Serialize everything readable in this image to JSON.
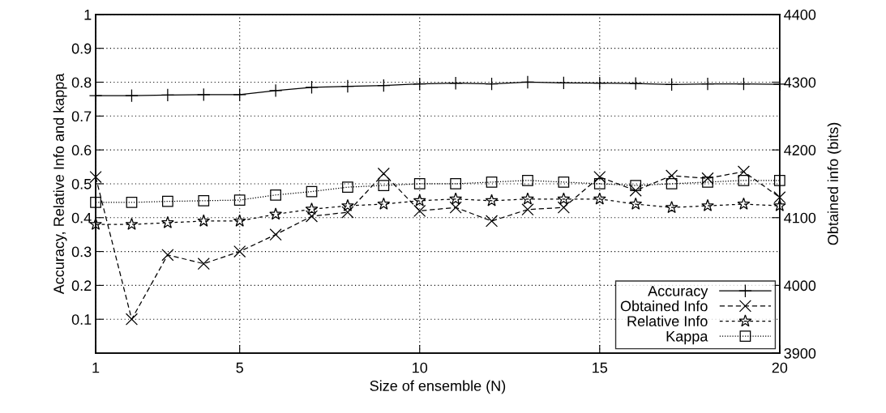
{
  "chart_data": {
    "type": "line",
    "xlabel": "Size of ensemble (N)",
    "ylabel": "Accuracy, Relative Info and kappa",
    "y2label": "Obtained info (bits)",
    "x": [
      1,
      2,
      3,
      4,
      5,
      6,
      7,
      8,
      9,
      10,
      11,
      12,
      13,
      14,
      15,
      16,
      17,
      18,
      19,
      20
    ],
    "xlim": [
      1,
      20
    ],
    "xticks": [
      1,
      5,
      10,
      15,
      20
    ],
    "ylim": [
      0,
      1
    ],
    "yticks": [
      0.1,
      0.2,
      0.3,
      0.4,
      0.5,
      0.6,
      0.7,
      0.8,
      0.9,
      1
    ],
    "y2lim": [
      3900,
      4400
    ],
    "y2ticks": [
      3900,
      4000,
      4100,
      4200,
      4300,
      4400
    ],
    "grid": true,
    "legend": "bottom right",
    "series": [
      {
        "name": "Accuracy",
        "color": "#000000",
        "marker": "cross",
        "line_style": "solid",
        "values": [
          0.76,
          0.76,
          0.762,
          0.763,
          0.763,
          0.775,
          0.785,
          0.788,
          0.79,
          0.795,
          0.797,
          0.795,
          0.8,
          0.798,
          0.797,
          0.796,
          0.793,
          0.795,
          0.795,
          0.794
        ]
      },
      {
        "name": "Obtained Info",
        "color": "#000000",
        "marker": "x",
        "line_style": "dashed",
        "axis": "y2",
        "values": [
          4160,
          3950,
          4045,
          4032,
          4050,
          4075,
          4102,
          4108,
          4165,
          4110,
          4115,
          4095,
          4112,
          4115,
          4160,
          4140,
          4162,
          4158,
          4168,
          4130
        ]
      },
      {
        "name": "Relative Info",
        "color": "#000000",
        "marker": "star",
        "line_style": "densely_dashed",
        "values": [
          0.38,
          0.38,
          0.385,
          0.39,
          0.39,
          0.41,
          0.425,
          0.435,
          0.44,
          0.45,
          0.455,
          0.45,
          0.455,
          0.455,
          0.455,
          0.44,
          0.43,
          0.435,
          0.44,
          0.435
        ]
      },
      {
        "name": "Kappa",
        "color": "#000000",
        "marker": "square",
        "line_style": "dotted",
        "values": [
          0.445,
          0.445,
          0.448,
          0.45,
          0.452,
          0.467,
          0.477,
          0.49,
          0.495,
          0.5,
          0.5,
          0.505,
          0.51,
          0.505,
          0.5,
          0.495,
          0.5,
          0.505,
          0.51,
          0.51
        ]
      }
    ]
  }
}
